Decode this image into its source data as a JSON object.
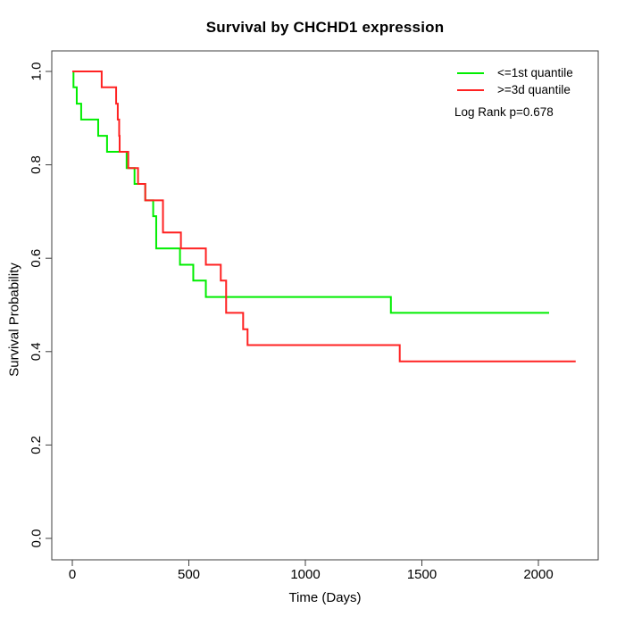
{
  "chart_data": {
    "type": "line",
    "subtype": "kaplan-meier-step",
    "title": "Survival by CHCHD1 expression",
    "xlabel": "Time (Days)",
    "ylabel": "Survival Probability",
    "xticks": [
      0,
      500,
      1000,
      1500,
      2000
    ],
    "yticks": [
      0.0,
      0.2,
      0.4,
      0.6,
      0.8,
      1.0
    ],
    "xlim": [
      -90,
      2250
    ],
    "ylim": [
      -0.045,
      1.045
    ],
    "grid": false,
    "annotation": "Log Rank p=0.678",
    "legend": {
      "position": "top-right",
      "items": [
        {
          "label": "<=1st quantile",
          "color": "#00ee00"
        },
        {
          "label": ">=3d quantile",
          "color": "#ff2222"
        }
      ]
    },
    "series": [
      {
        "name": "<=1st quantile",
        "color": "#00ee00",
        "points": [
          [
            0,
            1.0
          ],
          [
            5,
            0.966
          ],
          [
            19,
            0.931
          ],
          [
            38,
            0.897
          ],
          [
            111,
            0.862
          ],
          [
            149,
            0.828
          ],
          [
            233,
            0.793
          ],
          [
            267,
            0.759
          ],
          [
            313,
            0.724
          ],
          [
            347,
            0.69
          ],
          [
            360,
            0.621
          ],
          [
            462,
            0.586
          ],
          [
            519,
            0.552
          ],
          [
            573,
            0.517
          ],
          [
            1367,
            0.483
          ],
          [
            2046,
            0.483
          ]
        ]
      },
      {
        "name": ">=3d quantile",
        "color": "#ff2222",
        "points": [
          [
            0,
            1.0
          ],
          [
            126,
            0.966
          ],
          [
            188,
            0.931
          ],
          [
            195,
            0.897
          ],
          [
            201,
            0.862
          ],
          [
            203,
            0.828
          ],
          [
            240,
            0.793
          ],
          [
            282,
            0.759
          ],
          [
            313,
            0.724
          ],
          [
            389,
            0.655
          ],
          [
            466,
            0.621
          ],
          [
            573,
            0.586
          ],
          [
            637,
            0.552
          ],
          [
            660,
            0.483
          ],
          [
            733,
            0.448
          ],
          [
            752,
            0.414
          ],
          [
            1405,
            0.379
          ],
          [
            2160,
            0.379
          ]
        ]
      }
    ]
  }
}
